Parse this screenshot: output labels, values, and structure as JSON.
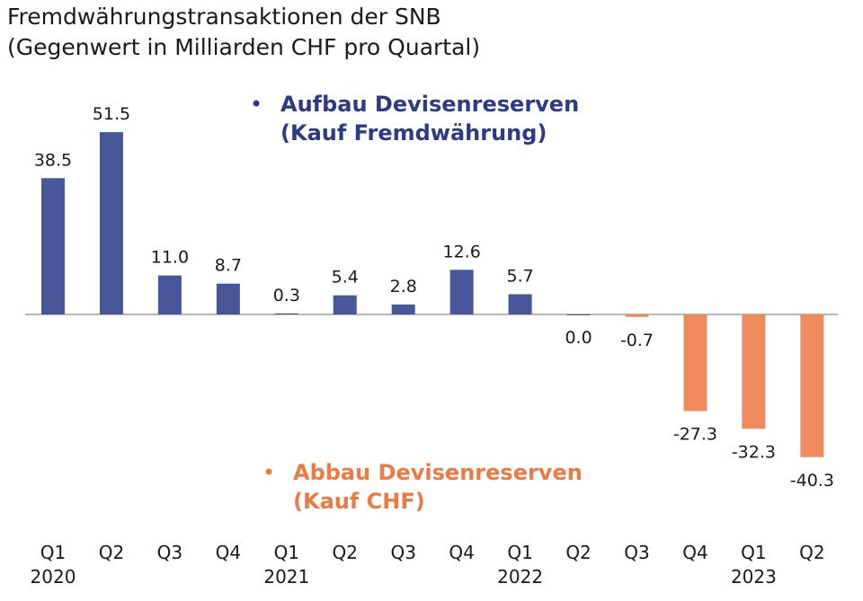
{
  "chart_data": {
    "type": "bar",
    "title": "Fremdwährungstransaktionen der SNB",
    "subtitle": "(Gegenwert in Milliarden CHF pro Quartal)",
    "categories": [
      "Q1",
      "Q2",
      "Q3",
      "Q4",
      "Q1",
      "Q2",
      "Q3",
      "Q4",
      "Q1",
      "Q2",
      "Q3",
      "Q4",
      "Q1",
      "Q2"
    ],
    "year_labels": [
      "2020",
      "",
      "",
      "",
      "2021",
      "",
      "",
      "",
      "2022",
      "",
      "",
      "",
      "2023",
      ""
    ],
    "values": [
      38.5,
      51.5,
      11.0,
      8.7,
      0.3,
      5.4,
      2.8,
      12.6,
      5.7,
      0.0,
      -0.7,
      -27.3,
      -32.3,
      -40.3
    ],
    "data_labels": [
      "38.5",
      "51.5",
      "11.0",
      "8.7",
      "0.3",
      "5.4",
      "2.8",
      "12.6",
      "5.7",
      "0.0",
      "-0.7",
      "-27.3",
      "-32.3",
      "-40.3"
    ],
    "ylim": [
      -46,
      60
    ],
    "grid": false,
    "colors": {
      "positive": "#47579a",
      "negative": "#ee8a5b",
      "axis": "#a0a0a0",
      "text": "#1a1a1a"
    },
    "annotations": {
      "positive": {
        "line1": "Aufbau Devisenreserven",
        "line2": "(Kauf Fremdwährung)",
        "bullet": "•",
        "color": "#2d3a85"
      },
      "negative": {
        "line1": "Abbau Devisenreserven",
        "line2": "(Kauf CHF)",
        "bullet": "•",
        "color": "#ec7b43"
      }
    }
  }
}
